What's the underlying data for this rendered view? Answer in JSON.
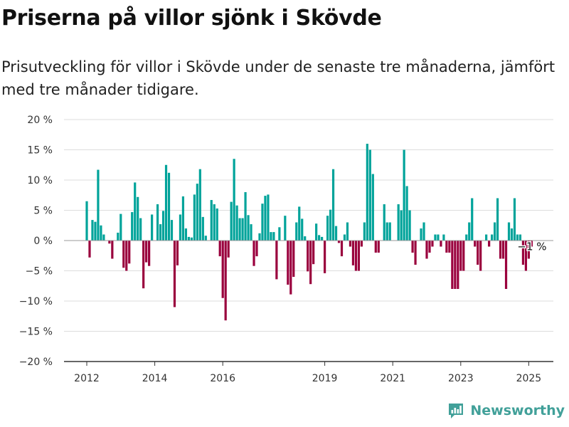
{
  "header": {
    "title": "Priserna på villor sjönk i Skövde",
    "subtitle": "Prisutveckling för villor i Skövde under de senaste tre månaderna, jämfört med tre månader tidigare."
  },
  "brand": {
    "name": "Newsworthy",
    "icon": "bar-chart-logo-icon"
  },
  "colors": {
    "positive": "#00a39a",
    "negative": "#9a003d",
    "grid": "#dddddd",
    "axis": "#333333"
  },
  "chart_data": {
    "type": "bar",
    "ylim": [
      -20,
      20
    ],
    "y_ticks": [
      20,
      15,
      10,
      5,
      0,
      -5,
      -10,
      -15,
      -20
    ],
    "y_tick_labels": [
      "20 %",
      "15 %",
      "10 %",
      "5 %",
      "0 %",
      "−5 %",
      "−10 %",
      "−15 %",
      "−20 %"
    ],
    "x_ticks": [
      2012,
      2014,
      2016,
      2019,
      2021,
      2023,
      2025
    ],
    "x_tick_labels": [
      "2012",
      "2014",
      "2016",
      "2019",
      "2021",
      "2023",
      "2025"
    ],
    "x_start": "2012-01",
    "frequency": "monthly",
    "series": [
      {
        "values": [
          6.5,
          -2.8,
          3.4,
          3.1,
          11.7,
          2.5,
          1,
          0,
          -0.5,
          -3,
          0,
          1.3,
          4.4,
          -4.5,
          -5,
          -3.8,
          4.7,
          9.6,
          7.2,
          3.7,
          -7.9,
          -3.6,
          -4.2,
          4.3,
          0,
          6,
          2.7,
          4.9,
          12.5,
          11.2,
          3.4,
          -11,
          -4.1,
          4.3,
          7.3,
          2,
          0.6,
          0.5,
          7.6,
          9.4,
          11.8,
          3.9,
          0.8,
          0,
          6.7,
          6,
          5.3,
          -2.6,
          -9.5,
          -13.2,
          -2.8,
          6.4,
          13.5,
          5.8,
          3.7,
          3.7,
          8,
          4.2,
          2.7,
          -4.2,
          -2.6,
          1.2,
          6.1,
          7.4,
          7.6,
          1.4,
          1.4,
          -6.4,
          2.2,
          0,
          4.1,
          -7.3,
          -8.9,
          -6,
          3,
          5.6,
          3.6,
          0.7,
          -5.1,
          -7.2,
          -3.9,
          2.8,
          0.9,
          0.6,
          -5.4,
          4.1,
          5.1,
          11.8,
          2.4,
          -0.4,
          -2.6,
          1,
          3,
          -1,
          -4.1,
          -5,
          -5,
          -1,
          3,
          16,
          15,
          11,
          -2,
          -2,
          0,
          6,
          3,
          3,
          0,
          0,
          6,
          5,
          15,
          9,
          5,
          -2,
          -4,
          0,
          2,
          3,
          -3,
          -2,
          -1,
          1,
          1,
          -1,
          1,
          -2,
          -2,
          -8,
          -8,
          -8,
          -5,
          -5,
          1,
          3,
          7,
          -1,
          -4,
          -5,
          0,
          1,
          -1,
          1,
          3,
          7,
          -3,
          -3,
          -8,
          3,
          2,
          7,
          1,
          1,
          -4,
          -5,
          -3,
          -1
        ]
      }
    ],
    "annotation": {
      "text": "−1 %"
    }
  }
}
